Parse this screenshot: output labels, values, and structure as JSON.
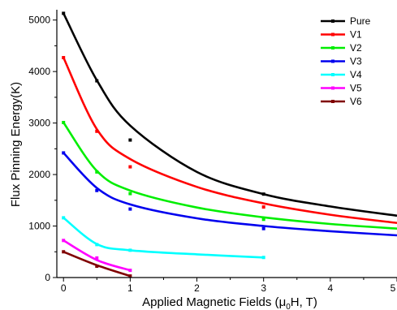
{
  "chart_data": {
    "type": "scatter",
    "title": "",
    "xlabel": "Applied Magnetic Fields (μ0H, T)",
    "xlabel_parts": {
      "before": "Applied Magnetic Fields (",
      "mu": "μ",
      "sub": "0",
      "after": "H, T)"
    },
    "ylabel": "Flux Pinning Energy(K)",
    "xlim": [
      -0.1,
      5
    ],
    "ylim": [
      0,
      5200
    ],
    "x_ticks": [
      0,
      1,
      2,
      3,
      4,
      5
    ],
    "y_ticks": [
      0,
      1000,
      2000,
      3000,
      4000,
      5000
    ],
    "legend_position": "top-right",
    "grid": false,
    "series": [
      {
        "name": "Pure",
        "color": "#000000",
        "points": [
          [
            0,
            5130
          ],
          [
            0.5,
            3820
          ],
          [
            1,
            2670
          ],
          [
            3,
            1620
          ]
        ],
        "fit": [
          [
            0,
            5130
          ],
          [
            0.5,
            3830
          ],
          [
            1,
            2950
          ],
          [
            2,
            2050
          ],
          [
            3,
            1620
          ],
          [
            4,
            1380
          ],
          [
            5,
            1200
          ]
        ]
      },
      {
        "name": "V1",
        "color": "#ff0000",
        "points": [
          [
            0,
            4270
          ],
          [
            0.5,
            2840
          ],
          [
            1,
            2150
          ],
          [
            3,
            1370
          ]
        ],
        "fit": [
          [
            0,
            4270
          ],
          [
            0.5,
            2880
          ],
          [
            1,
            2300
          ],
          [
            2,
            1760
          ],
          [
            3,
            1440
          ],
          [
            4,
            1220
          ],
          [
            5,
            1060
          ]
        ]
      },
      {
        "name": "V2",
        "color": "#00ee00",
        "points": [
          [
            0,
            3010
          ],
          [
            0.5,
            2050
          ],
          [
            1,
            1630
          ],
          [
            3,
            1130
          ]
        ],
        "fit": [
          [
            0,
            3010
          ],
          [
            0.5,
            2070
          ],
          [
            1,
            1690
          ],
          [
            2,
            1360
          ],
          [
            3,
            1170
          ],
          [
            4,
            1040
          ],
          [
            5,
            950
          ]
        ]
      },
      {
        "name": "V3",
        "color": "#0000ee",
        "points": [
          [
            0,
            2420
          ],
          [
            0.5,
            1690
          ],
          [
            1,
            1330
          ],
          [
            3,
            950
          ]
        ],
        "fit": [
          [
            0,
            2420
          ],
          [
            0.5,
            1740
          ],
          [
            1,
            1420
          ],
          [
            2,
            1150
          ],
          [
            3,
            1000
          ],
          [
            4,
            900
          ],
          [
            5,
            820
          ]
        ]
      },
      {
        "name": "V4",
        "color": "#00ffff",
        "points": [
          [
            0,
            1160
          ],
          [
            0.5,
            640
          ],
          [
            1,
            530
          ],
          [
            3,
            390
          ]
        ],
        "fit": [
          [
            0,
            1160
          ],
          [
            0.5,
            650
          ],
          [
            1,
            530
          ],
          [
            2,
            450
          ],
          [
            3,
            390
          ]
        ]
      },
      {
        "name": "V5",
        "color": "#ff00ff",
        "points": [
          [
            0,
            720
          ],
          [
            0.5,
            380
          ],
          [
            1,
            140
          ]
        ],
        "fit": [
          [
            0,
            720
          ],
          [
            0.5,
            340
          ],
          [
            1,
            140
          ]
        ]
      },
      {
        "name": "V6",
        "color": "#800000",
        "points": [
          [
            0,
            500
          ],
          [
            0.5,
            220
          ],
          [
            1,
            30
          ]
        ],
        "fit": [
          [
            0,
            500
          ],
          [
            0.5,
            240
          ],
          [
            1,
            30
          ]
        ]
      }
    ]
  }
}
